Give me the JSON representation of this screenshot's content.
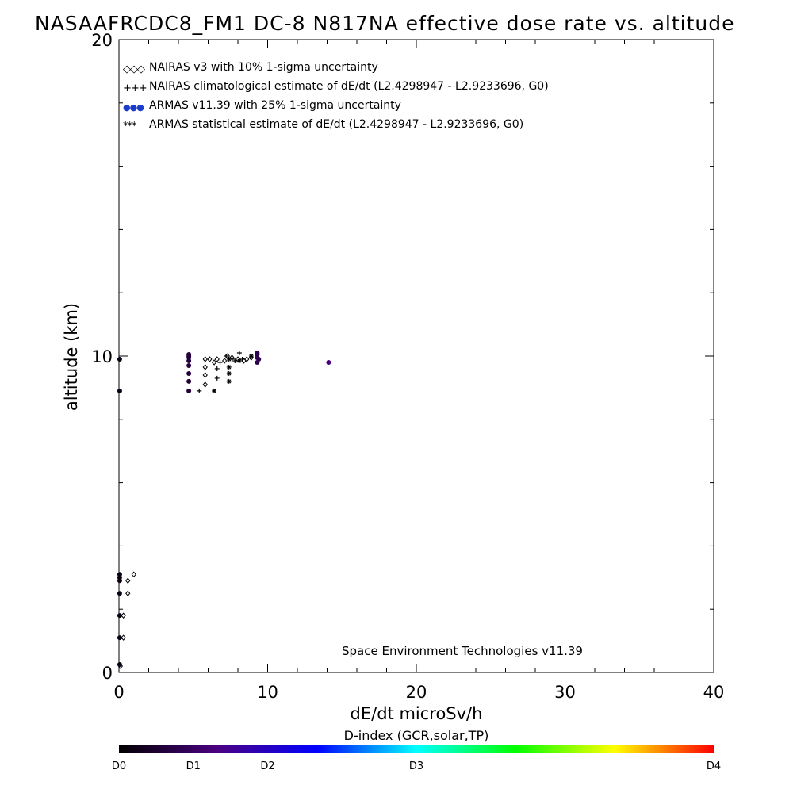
{
  "title": "NASAAFRCDC8_FM1 DC-8   N817NA effective dose rate vs. altitude",
  "footer_credit": "Space Environment Technologies v11.39",
  "legend": [
    {
      "marker": "◇◇◇",
      "text": "NAIRAS v3 with 10% 1-sigma uncertainty"
    },
    {
      "marker": "+++",
      "text": "NAIRAS climatological estimate of dE/dt (L2.4298947 - L2.9233696, G0)"
    },
    {
      "marker": "●●●",
      "text": "ARMAS v11.39 with 25% 1-sigma uncertainty"
    },
    {
      "marker": "***",
      "text": "ARMAS statistical estimate of dE/dt (L2.4298947 - L2.9233696, G0)"
    }
  ],
  "colorbar": {
    "title": "D-index (GCR,solar,TP)",
    "labels": [
      {
        "text": "D0",
        "pos": 0.0
      },
      {
        "text": "D1",
        "pos": 0.125
      },
      {
        "text": "D2",
        "pos": 0.25
      },
      {
        "text": "D3",
        "pos": 0.5
      },
      {
        "text": "D4",
        "pos": 1.0
      }
    ],
    "stops": [
      "#000000",
      "#4b0082",
      "#0000ff",
      "#00ffff",
      "#00ff00",
      "#ffff00",
      "#ff0000"
    ]
  },
  "chart_data": {
    "type": "scatter",
    "title": "NASAAFRCDC8_FM1 DC-8   N817NA effective dose rate vs. altitude",
    "xlabel": "dE/dt microSv/h",
    "ylabel": "altitude (km)",
    "xlim": [
      0,
      40
    ],
    "ylim": [
      0,
      20
    ],
    "xticks": [
      0,
      10,
      20,
      30,
      40
    ],
    "yticks": [
      0,
      10,
      20
    ],
    "series": [
      {
        "name": "NAIRAS v3 with 10% 1-sigma uncertainty",
        "marker": "diamond",
        "color": "#000000",
        "points": [
          [
            0.1,
            0.2
          ],
          [
            0.3,
            1.1
          ],
          [
            0.3,
            1.8
          ],
          [
            0.6,
            2.5
          ],
          [
            0.6,
            2.9
          ],
          [
            1.0,
            3.1
          ],
          [
            5.8,
            9.1
          ],
          [
            5.8,
            9.4
          ],
          [
            5.8,
            9.65
          ],
          [
            5.8,
            9.9
          ],
          [
            6.1,
            9.9
          ],
          [
            6.4,
            9.8
          ],
          [
            6.6,
            9.9
          ],
          [
            7.1,
            9.85
          ],
          [
            7.3,
            10.0
          ],
          [
            7.6,
            9.95
          ],
          [
            8.0,
            9.9
          ],
          [
            8.4,
            9.85
          ],
          [
            8.6,
            9.9
          ],
          [
            8.9,
            9.95
          ]
        ]
      },
      {
        "name": "NAIRAS climatological estimate of dE/dt (L2.4298947 - L2.9233696, G0)",
        "marker": "plus",
        "color": "#000000",
        "points": [
          [
            5.4,
            8.9
          ],
          [
            6.6,
            9.3
          ],
          [
            6.6,
            9.6
          ],
          [
            6.8,
            9.8
          ],
          [
            7.2,
            10.0
          ],
          [
            7.6,
            9.9
          ],
          [
            7.8,
            9.85
          ],
          [
            8.1,
            10.1
          ],
          [
            8.3,
            9.9
          ]
        ]
      },
      {
        "name": "ARMAS v11.39 with 25% 1-sigma uncertainty",
        "marker": "dot",
        "points": [
          [
            0.05,
            0.25,
            0.02
          ],
          [
            0.05,
            1.1,
            0.02
          ],
          [
            0.05,
            1.8,
            0.02
          ],
          [
            0.05,
            2.5,
            0.02
          ],
          [
            0.05,
            2.9,
            0.02
          ],
          [
            0.05,
            3.0,
            0.02
          ],
          [
            0.05,
            3.1,
            0.02
          ],
          [
            0.05,
            8.9,
            0.02
          ],
          [
            0.05,
            9.9,
            0.02
          ],
          [
            4.7,
            8.9,
            0.07
          ],
          [
            4.7,
            9.2,
            0.07
          ],
          [
            4.7,
            9.45,
            0.08
          ],
          [
            4.7,
            9.7,
            0.08
          ],
          [
            4.7,
            9.85,
            0.08
          ],
          [
            4.7,
            9.95,
            0.08
          ],
          [
            4.7,
            10.0,
            0.08
          ],
          [
            4.7,
            10.05,
            0.08
          ],
          [
            9.3,
            9.8,
            0.1
          ],
          [
            9.3,
            9.95,
            0.1
          ],
          [
            9.3,
            10.05,
            0.1
          ],
          [
            9.3,
            10.1,
            0.1
          ],
          [
            9.4,
            9.9,
            0.1
          ],
          [
            14.1,
            9.8,
            0.16
          ]
        ]
      },
      {
        "name": "ARMAS statistical estimate of dE/dt (L2.4298947 - L2.9233696, G0)",
        "marker": "asterisk",
        "color": "#000000",
        "points": [
          [
            6.4,
            8.9
          ],
          [
            7.4,
            9.2
          ],
          [
            7.4,
            9.45
          ],
          [
            7.4,
            9.65
          ],
          [
            7.4,
            9.9
          ],
          [
            8.1,
            9.85
          ],
          [
            8.9,
            10.0
          ]
        ]
      }
    ]
  }
}
